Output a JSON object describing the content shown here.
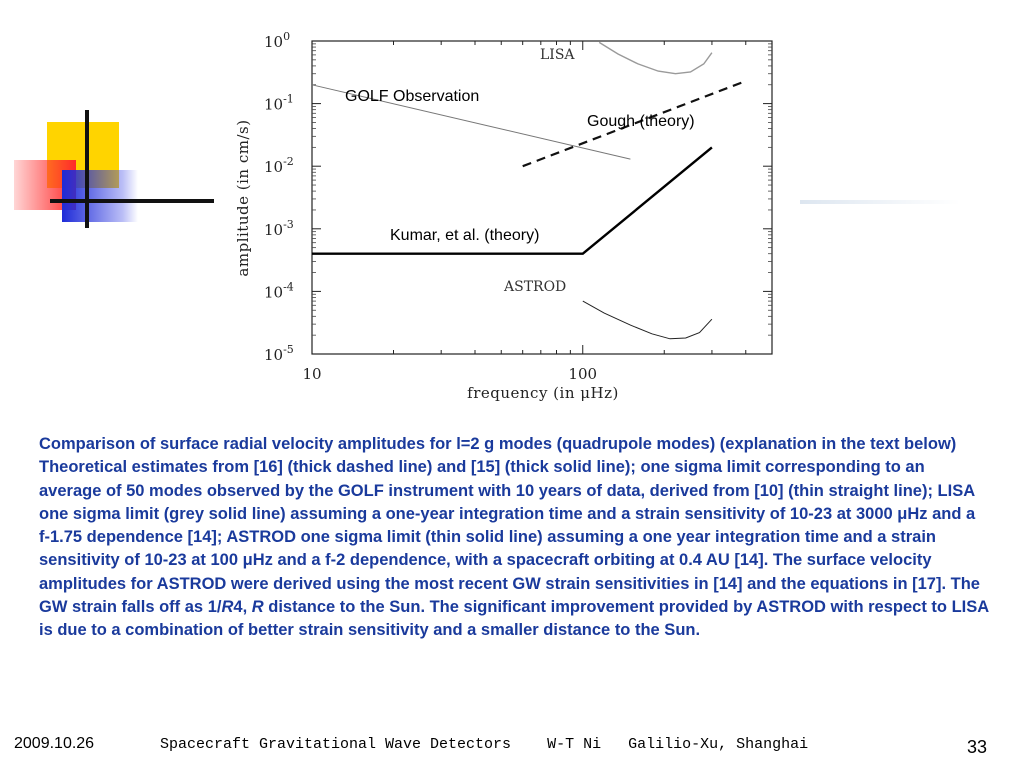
{
  "chart_data": {
    "type": "line",
    "xscale": "log",
    "yscale": "log",
    "xlim": [
      10,
      500
    ],
    "ylim": [
      1e-05,
      1
    ],
    "xlabel": "frequency (in μHz)",
    "ylabel": "amplitude (in cm/s)",
    "x_ticks": [
      {
        "value": 10,
        "label": "10"
      },
      {
        "value": 100,
        "label": "100"
      }
    ],
    "y_ticks": [
      {
        "value": 1,
        "base": "10",
        "exp": "0"
      },
      {
        "value": 0.1,
        "base": "10",
        "exp": "-1"
      },
      {
        "value": 0.01,
        "base": "10",
        "exp": "-2"
      },
      {
        "value": 0.001,
        "base": "10",
        "exp": "-3"
      },
      {
        "value": 0.0001,
        "base": "10",
        "exp": "-4"
      },
      {
        "value": 1e-05,
        "base": "10",
        "exp": "-5"
      }
    ],
    "series": [
      {
        "name": "GOLF Observation",
        "style": "thin",
        "x": [
          10,
          150
        ],
        "y": [
          0.2,
          0.013
        ]
      },
      {
        "name": "Gough (theory)",
        "style": "dashed",
        "x": [
          60,
          400
        ],
        "y": [
          0.01,
          0.23
        ]
      },
      {
        "name": "Kumar, et al. (theory)",
        "style": "thick",
        "x": [
          10,
          100,
          300
        ],
        "y": [
          0.0004,
          0.0004,
          0.02
        ]
      },
      {
        "name": "LISA",
        "style": "grey",
        "x": [
          115,
          135,
          160,
          190,
          220,
          250,
          280,
          300
        ],
        "y": [
          0.95,
          0.62,
          0.43,
          0.33,
          0.3,
          0.32,
          0.43,
          0.65
        ]
      },
      {
        "name": "ASTROD",
        "style": "thin-curve",
        "x": [
          100,
          120,
          150,
          180,
          210,
          240,
          270,
          300
        ],
        "y": [
          7e-05,
          4.5e-05,
          2.9e-05,
          2.1e-05,
          1.75e-05,
          1.8e-05,
          2.2e-05,
          3.6e-05
        ]
      }
    ]
  },
  "caption": {
    "main": "Comparison of surface radial velocity amplitudes for l=2 g modes (quadrupole modes) (explanation in the text below) Theoretical estimates from [16] (thick dashed line) and [15] (thick solid line); one sigma limit corresponding to an average of 50 modes observed by the GOLF instrument with 10 years of data, derived from [10] (thin straight line); LISA one sigma limit (grey solid line) assuming a one-year integration time and a strain sensitivity of 10-23 at 3000 μHz and a f-1.75 dependence [14]; ASTROD one sigma limit (thin solid line) assuming a one year integration time and a strain sensitivity of 10-23 at 100 μHz and a f-2 dependence, with a spacecraft orbiting at 0.4 AU [14]. The surface velocity amplitudes for ASTROD were derived using the most recent GW strain sensitivities in [14] and the equations in [17]. The GW strain falls off as 1/",
    "italic_r": "R",
    "four": "4, ",
    "italic_r2": "R",
    "tail": " distance to the Sun. The significant improvement provided by ASTROD with respect to LISA is due to a combination of better strain sensitivity and a smaller distance to the Sun."
  },
  "footer": {
    "date": "2009.10.26",
    "talk": "Spacecraft Gravitational Wave Detectors    W-T Ni   Galilio-Xu, Shanghai",
    "page": "33"
  },
  "colors": {
    "caption": "#1a3a9c",
    "lisa": "#9a9a9a",
    "golf": "#777777"
  }
}
